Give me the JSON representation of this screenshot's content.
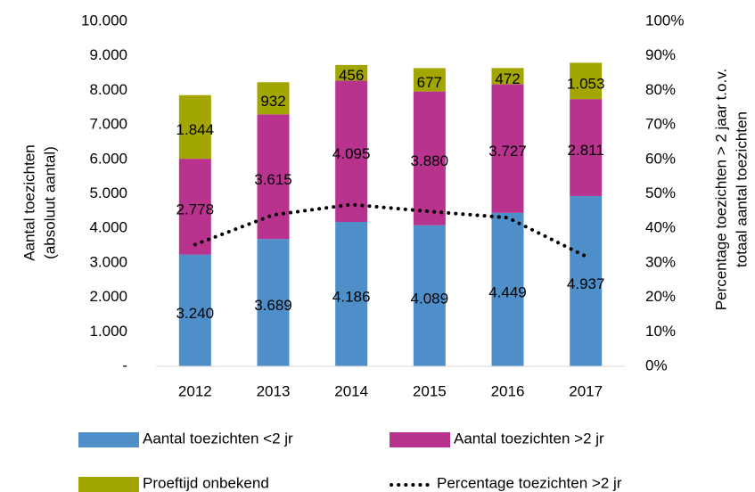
{
  "chart_data": {
    "type": "stacked_bar_line",
    "ylabel": [
      "Aantal toezichten",
      "(absoluut aantal)"
    ],
    "y2label": [
      "Percentage toezichten > 2 jaar t.o.v.",
      "totaal aantal toezichten"
    ],
    "categories": [
      "2012",
      "2013",
      "2014",
      "2015",
      "2016",
      "2017"
    ],
    "series": [
      {
        "name": "Aantal toezichten <2 jr",
        "type": "bar",
        "color": "#4f8fc9",
        "values": [
          3240,
          3689,
          4186,
          4089,
          4449,
          4937
        ],
        "value_labels": [
          "3.240",
          "3.689",
          "4.186",
          "4.089",
          "4.449",
          "4.937"
        ]
      },
      {
        "name": "Aantal toezichten >2 jr",
        "type": "bar",
        "color": "#b8338e",
        "values": [
          2778,
          3615,
          4095,
          3880,
          3727,
          2811
        ],
        "value_labels": [
          "2.778",
          "3.615",
          "4.095",
          "3.880",
          "3.727",
          "2.811"
        ]
      },
      {
        "name": "Proeftijd onbekend",
        "type": "bar",
        "color": "#a3a600",
        "values": [
          1844,
          932,
          456,
          677,
          472,
          1053
        ],
        "value_labels": [
          "1.844",
          "932",
          "456",
          "677",
          "472",
          "1.053"
        ]
      },
      {
        "name": "Percentage toezichten >2 jr",
        "type": "line",
        "axis": "y2",
        "color": "#000000",
        "values": [
          35.3,
          43.9,
          46.9,
          44.9,
          43.1,
          31.9
        ]
      }
    ],
    "ylim": [
      0,
      10000
    ],
    "yticks": [
      {
        "value": 0,
        "label": "-"
      },
      {
        "value": 1000,
        "label": "1.000"
      },
      {
        "value": 2000,
        "label": "2.000"
      },
      {
        "value": 3000,
        "label": "3.000"
      },
      {
        "value": 4000,
        "label": "4.000"
      },
      {
        "value": 5000,
        "label": "5.000"
      },
      {
        "value": 6000,
        "label": "6.000"
      },
      {
        "value": 7000,
        "label": "7.000"
      },
      {
        "value": 8000,
        "label": "8.000"
      },
      {
        "value": 9000,
        "label": "9.000"
      },
      {
        "value": 10000,
        "label": "10.000"
      }
    ],
    "y2lim": [
      0,
      100
    ],
    "y2ticks": [
      {
        "value": 0,
        "label": "0%"
      },
      {
        "value": 10,
        "label": "10%"
      },
      {
        "value": 20,
        "label": "20%"
      },
      {
        "value": 30,
        "label": "30%"
      },
      {
        "value": 40,
        "label": "40%"
      },
      {
        "value": 50,
        "label": "50%"
      },
      {
        "value": 60,
        "label": "60%"
      },
      {
        "value": 70,
        "label": "70%"
      },
      {
        "value": 80,
        "label": "80%"
      },
      {
        "value": 90,
        "label": "90%"
      },
      {
        "value": 100,
        "label": "100%"
      }
    ],
    "grid": false,
    "legend": "bottom"
  }
}
